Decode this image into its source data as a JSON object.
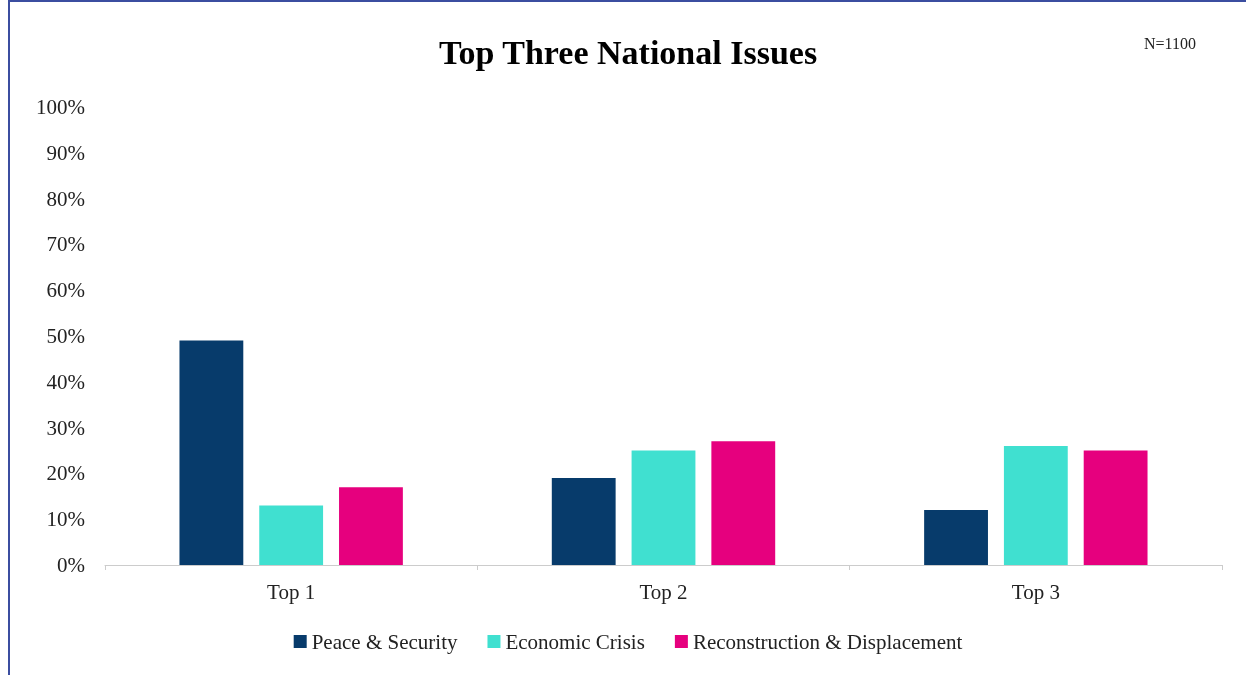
{
  "chart_data": {
    "type": "bar",
    "title": "Top Three National Issues",
    "annotations": [
      "N=1100"
    ],
    "categories": [
      "Top 1",
      "Top 2",
      "Top 3"
    ],
    "series": [
      {
        "name": "Peace & Security",
        "color": "#073b6b",
        "values": [
          49,
          19,
          12
        ]
      },
      {
        "name": "Economic Crisis",
        "color": "#40e0d0",
        "values": [
          13,
          25,
          26
        ]
      },
      {
        "name": "Reconstruction & Displacement",
        "color": "#e6007e",
        "values": [
          17,
          27,
          25
        ]
      }
    ],
    "ylim": [
      0,
      100
    ],
    "yticks": [
      {
        "value": 0,
        "label": "0%"
      },
      {
        "value": 10,
        "label": "10%"
      },
      {
        "value": 20,
        "label": "20%"
      },
      {
        "value": 30,
        "label": "30%"
      },
      {
        "value": 40,
        "label": "40%"
      },
      {
        "value": 50,
        "label": "50%"
      },
      {
        "value": 60,
        "label": "60%"
      },
      {
        "value": 70,
        "label": "70%"
      },
      {
        "value": 80,
        "label": "80%"
      },
      {
        "value": 90,
        "label": "90%"
      },
      {
        "value": 100,
        "label": "100%"
      }
    ],
    "grid": false,
    "legend": "bottom"
  }
}
